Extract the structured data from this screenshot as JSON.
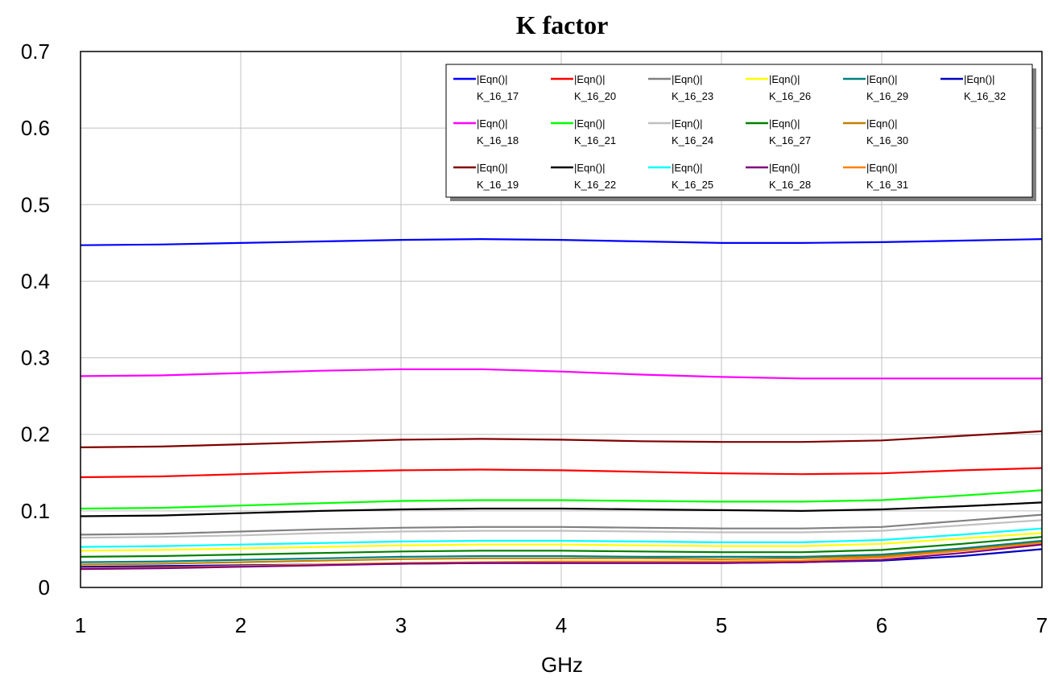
{
  "chart_data": {
    "type": "line",
    "title": "K factor",
    "xlabel": "GHz",
    "ylabel": "",
    "xlim": [
      1,
      7
    ],
    "ylim": [
      0,
      0.7
    ],
    "x_ticks": [
      "1",
      "2",
      "3",
      "4",
      "5",
      "6",
      "7"
    ],
    "y_ticks": [
      "0",
      "0.1",
      "0.2",
      "0.3",
      "0.4",
      "0.5",
      "0.6",
      "0.7"
    ],
    "grid": true,
    "legend_position": "top-right",
    "x": [
      1,
      1.5,
      2,
      2.5,
      3,
      3.5,
      4,
      4.5,
      5,
      5.5,
      6,
      6.5,
      7
    ],
    "series": [
      {
        "name": "|Eqn()| K_16_17",
        "color": "#0000ff",
        "values": [
          0.447,
          0.448,
          0.45,
          0.452,
          0.454,
          0.455,
          0.454,
          0.452,
          0.45,
          0.45,
          0.451,
          0.453,
          0.455
        ]
      },
      {
        "name": "|Eqn()| K_16_18",
        "color": "#ff00ff",
        "values": [
          0.276,
          0.277,
          0.28,
          0.283,
          0.285,
          0.285,
          0.282,
          0.278,
          0.275,
          0.273,
          0.273,
          0.273,
          0.273
        ]
      },
      {
        "name": "|Eqn()| K_16_19",
        "color": "#800000",
        "values": [
          0.183,
          0.184,
          0.187,
          0.19,
          0.193,
          0.194,
          0.193,
          0.191,
          0.19,
          0.19,
          0.192,
          0.198,
          0.204
        ]
      },
      {
        "name": "|Eqn()| K_16_20",
        "color": "#ff0000",
        "values": [
          0.144,
          0.145,
          0.148,
          0.151,
          0.153,
          0.154,
          0.153,
          0.151,
          0.149,
          0.148,
          0.149,
          0.153,
          0.156
        ]
      },
      {
        "name": "|Eqn()| K_16_21",
        "color": "#00ff00",
        "values": [
          0.103,
          0.104,
          0.107,
          0.11,
          0.113,
          0.114,
          0.114,
          0.113,
          0.112,
          0.112,
          0.114,
          0.12,
          0.127
        ]
      },
      {
        "name": "|Eqn()| K_16_22",
        "color": "#000000",
        "values": [
          0.093,
          0.094,
          0.097,
          0.1,
          0.102,
          0.103,
          0.103,
          0.102,
          0.101,
          0.1,
          0.102,
          0.106,
          0.111
        ]
      },
      {
        "name": "|Eqn()| K_16_23",
        "color": "#808080",
        "values": [
          0.069,
          0.07,
          0.073,
          0.076,
          0.078,
          0.079,
          0.079,
          0.078,
          0.077,
          0.077,
          0.079,
          0.087,
          0.095
        ]
      },
      {
        "name": "|Eqn()| K_16_24",
        "color": "#c0c0c0",
        "values": [
          0.065,
          0.066,
          0.068,
          0.071,
          0.073,
          0.074,
          0.074,
          0.073,
          0.072,
          0.072,
          0.074,
          0.081,
          0.088
        ]
      },
      {
        "name": "|Eqn()| K_16_25",
        "color": "#00ffff",
        "values": [
          0.053,
          0.054,
          0.056,
          0.058,
          0.06,
          0.061,
          0.061,
          0.06,
          0.059,
          0.059,
          0.062,
          0.069,
          0.077
        ]
      },
      {
        "name": "|Eqn()| K_16_26",
        "color": "#ffff00",
        "values": [
          0.048,
          0.049,
          0.051,
          0.053,
          0.055,
          0.056,
          0.056,
          0.055,
          0.054,
          0.054,
          0.057,
          0.064,
          0.071
        ]
      },
      {
        "name": "|Eqn()| K_16_27",
        "color": "#008000",
        "values": [
          0.04,
          0.041,
          0.043,
          0.045,
          0.047,
          0.048,
          0.048,
          0.047,
          0.046,
          0.046,
          0.049,
          0.057,
          0.066
        ]
      },
      {
        "name": "|Eqn()| K_16_28",
        "color": "#800080",
        "values": [
          0.024,
          0.025,
          0.027,
          0.029,
          0.031,
          0.032,
          0.032,
          0.032,
          0.032,
          0.033,
          0.036,
          0.045,
          0.056
        ]
      },
      {
        "name": "|Eqn()| K_16_29",
        "color": "#008080",
        "values": [
          0.033,
          0.034,
          0.036,
          0.038,
          0.04,
          0.041,
          0.041,
          0.04,
          0.04,
          0.04,
          0.043,
          0.051,
          0.061
        ]
      },
      {
        "name": "|Eqn()| K_16_30",
        "color": "#c08000",
        "values": [
          0.03,
          0.031,
          0.033,
          0.035,
          0.037,
          0.038,
          0.038,
          0.038,
          0.037,
          0.038,
          0.041,
          0.05,
          0.06
        ]
      },
      {
        "name": "|Eqn()| K_16_31",
        "color": "#ff8000",
        "values": [
          0.025,
          0.026,
          0.028,
          0.03,
          0.032,
          0.033,
          0.034,
          0.034,
          0.034,
          0.035,
          0.039,
          0.048,
          0.058
        ]
      },
      {
        "name": "|Eqn()| K_16_32",
        "color": "#0000c0",
        "values": [
          0.027,
          0.028,
          0.029,
          0.03,
          0.031,
          0.032,
          0.032,
          0.032,
          0.032,
          0.033,
          0.035,
          0.041,
          0.05
        ]
      }
    ],
    "legend_layout": [
      [
        "K_16_17",
        "K_16_20",
        "K_16_23",
        "K_16_26",
        "K_16_29",
        "K_16_32"
      ],
      [
        "K_16_18",
        "K_16_21",
        "K_16_24",
        "K_16_27",
        "K_16_30"
      ],
      [
        "K_16_19",
        "K_16_22",
        "K_16_25",
        "K_16_28",
        "K_16_31"
      ]
    ]
  }
}
